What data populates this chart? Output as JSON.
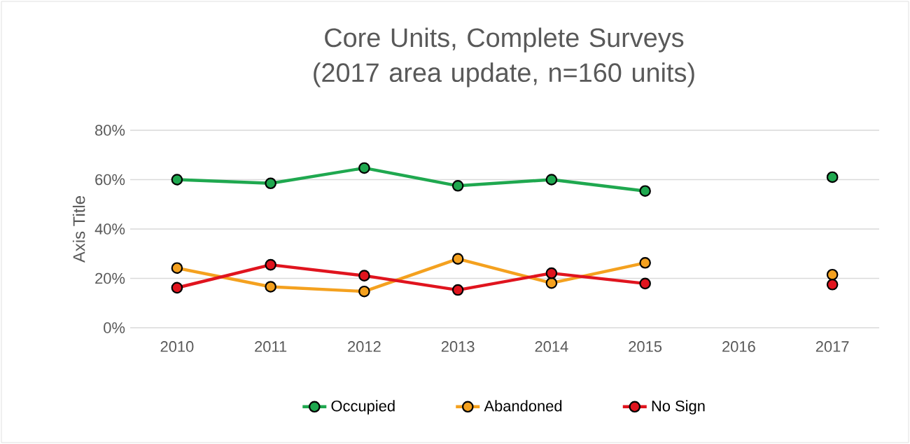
{
  "chart_data": {
    "type": "line",
    "title": "Core Units, Complete Surveys (2017 area update, n=160 units)",
    "ylabel": "Axis Title",
    "categories": [
      "2010",
      "2011",
      "2012",
      "2013",
      "2014",
      "2015",
      "2016",
      "2017"
    ],
    "series": [
      {
        "name": "Occupied",
        "color": "#1fa84f",
        "values": [
          60,
          58.5,
          64.7,
          57.5,
          60,
          55.4,
          null,
          61
        ]
      },
      {
        "name": "Abandoned",
        "color": "#f4a11f",
        "values": [
          24.2,
          16.6,
          14.7,
          27.9,
          18.1,
          26.3,
          null,
          21.5
        ]
      },
      {
        "name": "No Sign",
        "color": "#e0141e",
        "values": [
          16.2,
          25.5,
          21.1,
          15.3,
          22.1,
          17.9,
          null,
          17.5
        ]
      }
    ],
    "ylim": [
      0,
      80
    ],
    "yticks": [
      {
        "value": 0,
        "label": "0%"
      },
      {
        "value": 20,
        "label": "20%"
      },
      {
        "value": 40,
        "label": "40%"
      },
      {
        "value": 60,
        "label": "60%"
      },
      {
        "value": 80,
        "label": "80%"
      }
    ],
    "grid": "y",
    "legend": "bottom",
    "marker": "circle",
    "line_style": "solid"
  }
}
